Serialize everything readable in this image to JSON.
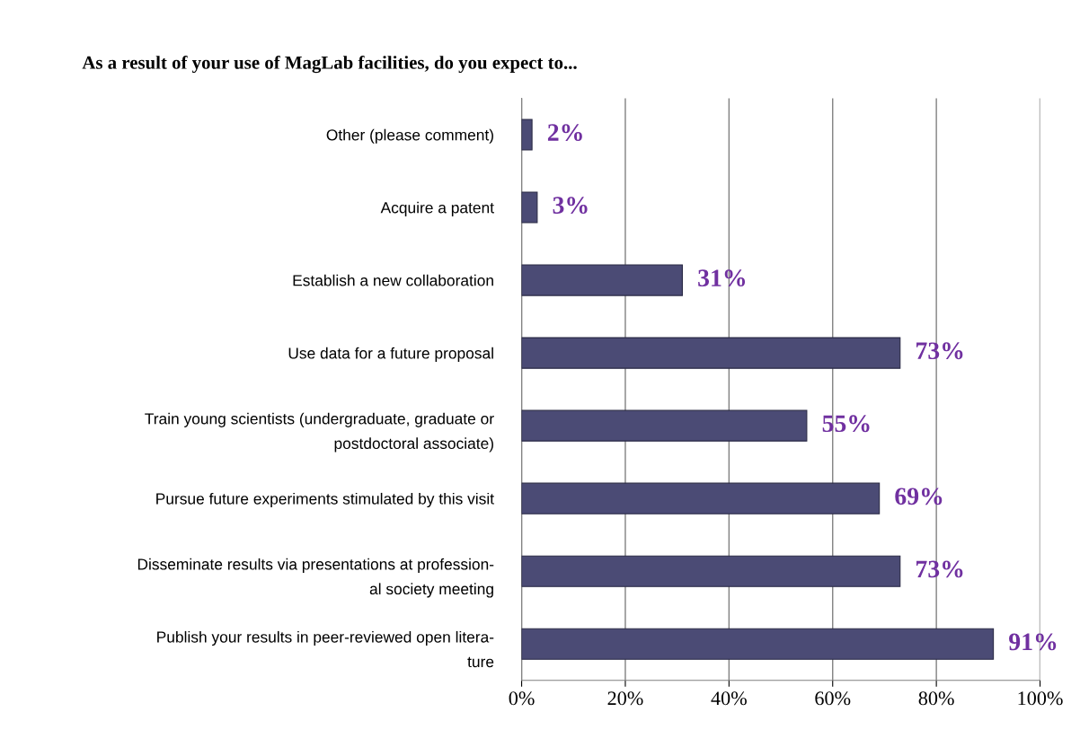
{
  "chart_data": {
    "type": "bar",
    "orientation": "horizontal",
    "title": "As a result of your use of MagLab facilities, do you expect to...",
    "categories": [
      "Other (please comment)",
      "Acquire a patent",
      "Establish a new collaboration",
      "Use data for a future proposal",
      "Train young scientists (undergraduate, graduate or\npostdoctoral associate)",
      "Pursue future experiments stimulated by this visit",
      "Disseminate results via presentations at profession-\nal society meeting",
      "Publish your results in peer-reviewed open litera-\nture"
    ],
    "values": [
      2,
      3,
      31,
      73,
      55,
      69,
      73,
      91
    ],
    "value_labels": [
      "2%",
      "3%",
      "31%",
      "73%",
      "55%",
      "69%",
      "73%",
      "91%"
    ],
    "color": "#4b4b75",
    "xlim": [
      0,
      100
    ],
    "xticks": [
      {
        "value": 0,
        "label": "0%"
      },
      {
        "value": 20,
        "label": "20%"
      },
      {
        "value": 40,
        "label": "40%"
      },
      {
        "value": 60,
        "label": "60%"
      },
      {
        "value": 80,
        "label": "80%"
      },
      {
        "value": 100,
        "label": "100%"
      }
    ],
    "grid": "x"
  }
}
